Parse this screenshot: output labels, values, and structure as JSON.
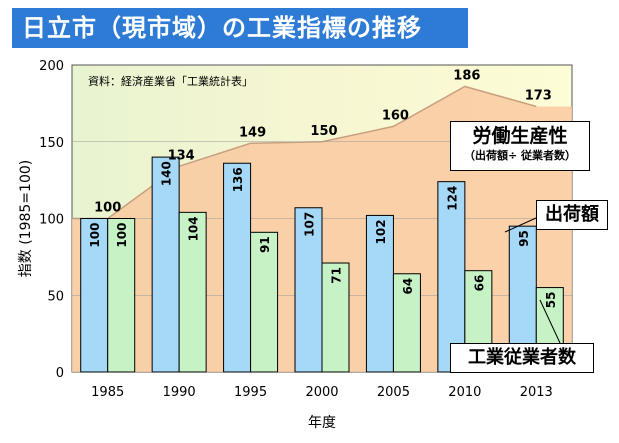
{
  "title": "日立市（現市域）の工業指標の推移",
  "source": "資料：経済産業省「工業統計表」",
  "labels": {
    "productivity": "労働生産性",
    "productivity_sub": "（出荷額÷ 従業者数）",
    "shipments": "出荷額",
    "employees": "工業従業者数"
  },
  "colors": {
    "banner": "#2e7bd6",
    "shipments_bar": "#a6d8f7",
    "employees_bar": "#c6f2c6",
    "productivity_area": "#f9c9a0"
  },
  "chart_data": {
    "type": "bar",
    "categories": [
      "1985",
      "1990",
      "1995",
      "2000",
      "2005",
      "2010",
      "2013"
    ],
    "series": [
      {
        "name": "出荷額",
        "values": [
          100,
          140,
          136,
          107,
          102,
          124,
          95
        ]
      },
      {
        "name": "工業従業者数",
        "values": [
          100,
          104,
          91,
          71,
          64,
          66,
          55
        ]
      },
      {
        "name": "労働生産性",
        "values": [
          100,
          134,
          149,
          150,
          160,
          186,
          173
        ]
      }
    ],
    "xlabel": "年度",
    "ylabel": "指数 (1985=100)",
    "ylim": [
      0,
      200
    ],
    "yticks": [
      0,
      50,
      100,
      150,
      200
    ]
  }
}
